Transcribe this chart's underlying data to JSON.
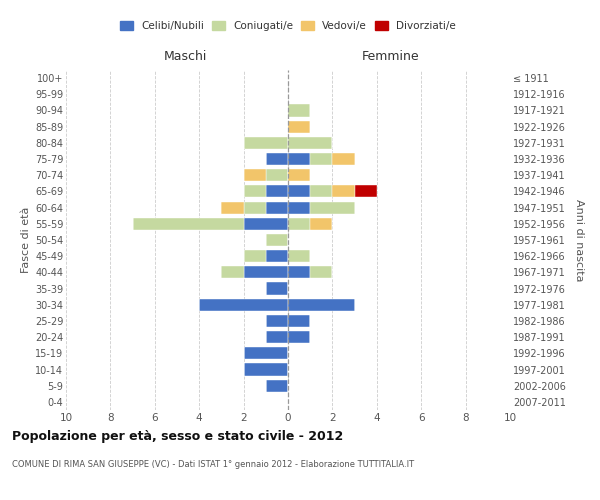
{
  "age_groups": [
    "100+",
    "95-99",
    "90-94",
    "85-89",
    "80-84",
    "75-79",
    "70-74",
    "65-69",
    "60-64",
    "55-59",
    "50-54",
    "45-49",
    "40-44",
    "35-39",
    "30-34",
    "25-29",
    "20-24",
    "15-19",
    "10-14",
    "5-9",
    "0-4"
  ],
  "birth_years": [
    "≤ 1911",
    "1912-1916",
    "1917-1921",
    "1922-1926",
    "1927-1931",
    "1932-1936",
    "1937-1941",
    "1942-1946",
    "1947-1951",
    "1952-1956",
    "1957-1961",
    "1962-1966",
    "1967-1971",
    "1972-1976",
    "1977-1981",
    "1982-1986",
    "1987-1991",
    "1992-1996",
    "1997-2001",
    "2002-2006",
    "2007-2011"
  ],
  "males": {
    "celibi": [
      0,
      0,
      0,
      0,
      0,
      1,
      0,
      1,
      1,
      2,
      0,
      1,
      2,
      1,
      4,
      1,
      1,
      2,
      2,
      1,
      0
    ],
    "coniugati": [
      0,
      0,
      0,
      0,
      2,
      0,
      1,
      1,
      1,
      5,
      1,
      1,
      1,
      0,
      0,
      0,
      0,
      0,
      0,
      0,
      0
    ],
    "vedovi": [
      0,
      0,
      0,
      0,
      0,
      0,
      1,
      0,
      1,
      0,
      0,
      0,
      0,
      0,
      0,
      0,
      0,
      0,
      0,
      0,
      0
    ],
    "divorziati": [
      0,
      0,
      0,
      0,
      0,
      0,
      0,
      0,
      0,
      0,
      0,
      0,
      0,
      0,
      0,
      0,
      0,
      0,
      0,
      0,
      0
    ]
  },
  "females": {
    "nubili": [
      0,
      0,
      0,
      0,
      0,
      1,
      0,
      1,
      1,
      0,
      0,
      0,
      1,
      0,
      3,
      1,
      1,
      0,
      0,
      0,
      0
    ],
    "coniugate": [
      0,
      0,
      1,
      0,
      2,
      1,
      0,
      1,
      2,
      1,
      0,
      1,
      1,
      0,
      0,
      0,
      0,
      0,
      0,
      0,
      0
    ],
    "vedove": [
      0,
      0,
      0,
      1,
      0,
      1,
      1,
      1,
      0,
      1,
      0,
      0,
      0,
      0,
      0,
      0,
      0,
      0,
      0,
      0,
      0
    ],
    "divorziate": [
      0,
      0,
      0,
      0,
      0,
      0,
      0,
      1,
      0,
      0,
      0,
      0,
      0,
      0,
      0,
      0,
      0,
      0,
      0,
      0,
      0
    ]
  },
  "colors": {
    "celibi_nubili": "#4472C4",
    "coniugati": "#C5D9A0",
    "vedovi": "#F2C56A",
    "divorziati": "#C00000"
  },
  "xlim": 10,
  "title": "Popolazione per età, sesso e stato civile - 2012",
  "subtitle": "COMUNE DI RIMA SAN GIUSEPPE (VC) - Dati ISTAT 1° gennaio 2012 - Elaborazione TUTTITALIA.IT",
  "xlabel_left": "Maschi",
  "xlabel_right": "Femmine",
  "ylabel_left": "Fasce di età",
  "ylabel_right": "Anni di nascita",
  "legend_labels": [
    "Celibi/Nubili",
    "Coniugati/e",
    "Vedovi/e",
    "Divorziati/e"
  ],
  "bg_color": "#ffffff",
  "grid_color": "#cccccc",
  "text_color": "#555555"
}
